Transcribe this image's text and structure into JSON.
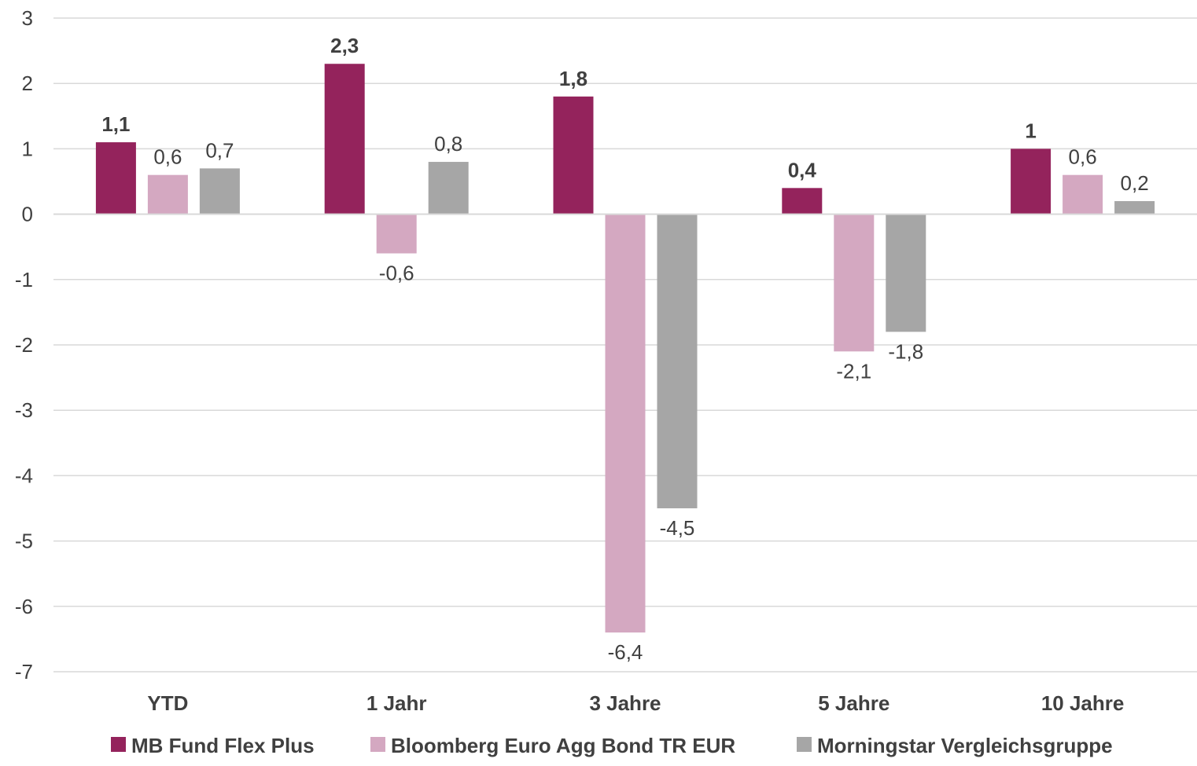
{
  "chart_data": {
    "type": "bar",
    "categories": [
      "YTD",
      "1 Jahr",
      "3 Jahre",
      "5 Jahre",
      "10 Jahre"
    ],
    "series": [
      {
        "name": "MB Fund Flex Plus",
        "color": "#94235c",
        "values": [
          1.1,
          2.3,
          1.8,
          0.4,
          1
        ],
        "labels": [
          "1,1",
          "2,3",
          "1,8",
          "0,4",
          "1"
        ],
        "label_bold": true
      },
      {
        "name": "Bloomberg Euro Agg Bond TR EUR",
        "color": "#d4a8c1",
        "values": [
          0.6,
          -0.6,
          -6.4,
          -2.1,
          0.6
        ],
        "labels": [
          "0,6",
          "-0,6",
          "-6,4",
          "-2,1",
          "0,6"
        ],
        "label_bold": false
      },
      {
        "name": "Morningstar Vergleichsgruppe",
        "color": "#a6a6a6",
        "values": [
          0.7,
          0.8,
          -4.5,
          -1.8,
          0.2
        ],
        "labels": [
          "0,7",
          "0,8",
          "-4,5",
          "-1,8",
          "0,2"
        ],
        "label_bold": false
      }
    ],
    "yticks": [
      3,
      2,
      1,
      0,
      -1,
      -2,
      -3,
      -4,
      -5,
      -6,
      -7
    ],
    "ytick_labels": [
      "3",
      "2",
      "1",
      "0",
      "-1",
      "-2",
      "-3",
      "-4",
      "-5",
      "-6",
      "-7"
    ],
    "ylim": [
      -7,
      3
    ],
    "title": "",
    "xlabel": "",
    "ylabel": "",
    "grid": true,
    "gridline_color": "#d9d9d9",
    "legend_position": "bottom"
  }
}
